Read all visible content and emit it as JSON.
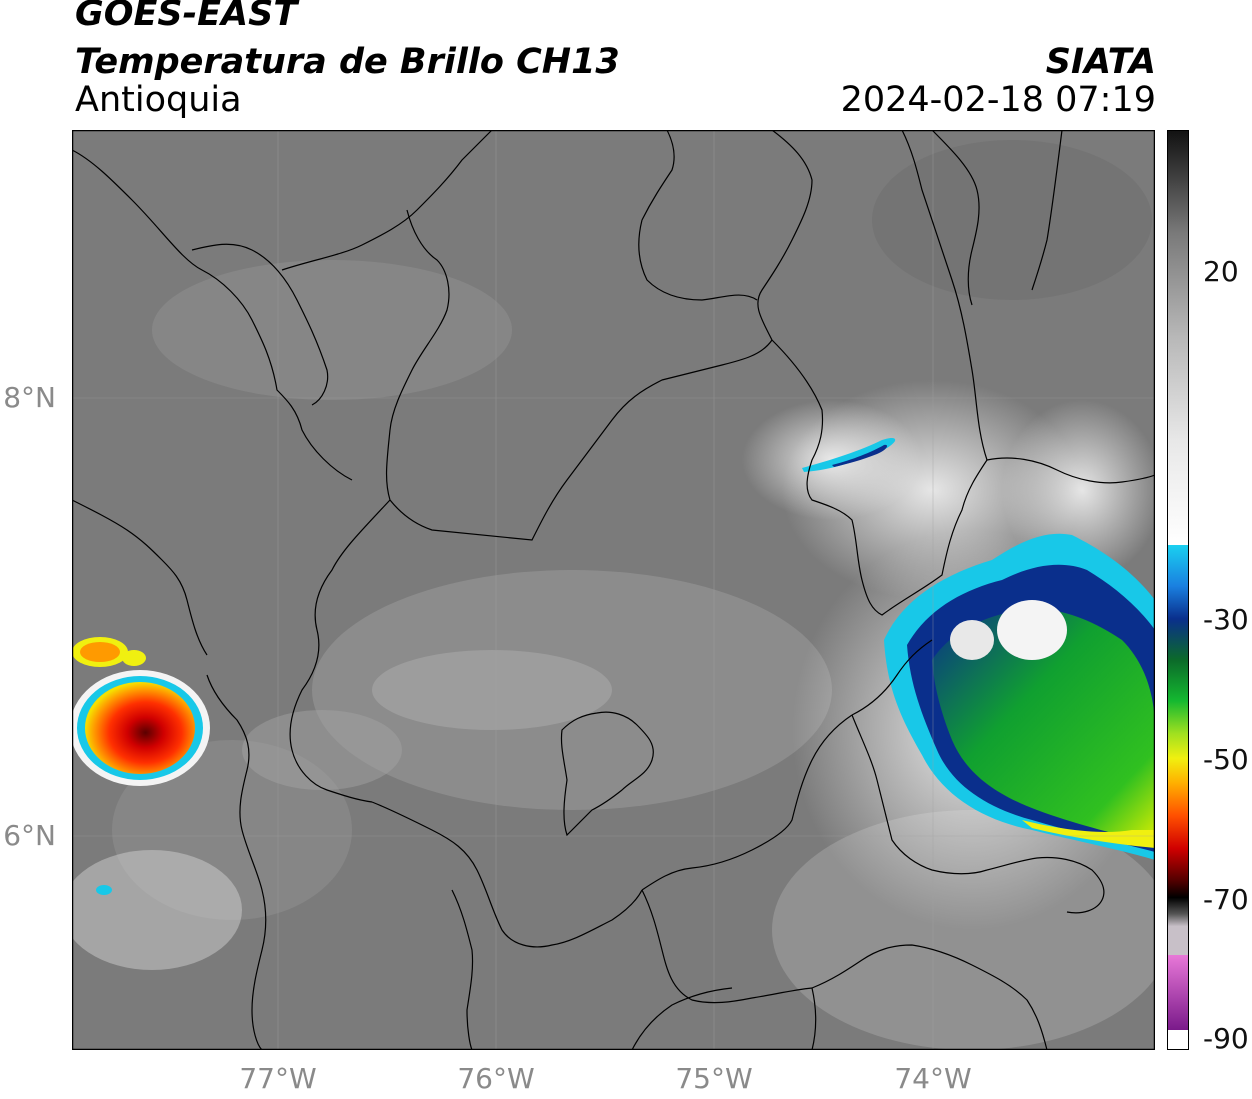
{
  "header": {
    "satellite": "GOES-EAST",
    "product": "Temperatura de Brillo CH13",
    "region": "Antioquia",
    "credit": "SIATA",
    "datetime": "2024-02-18 07:19"
  },
  "map": {
    "lat_labels": [
      "8°N",
      "6°N"
    ],
    "lon_labels": [
      "77°W",
      "76°W",
      "75°W",
      "74°W"
    ],
    "background_gray": "#7e7e7e",
    "border_color": "#000000"
  },
  "colorbar": {
    "tick_labels": [
      "20",
      "-30",
      "-50",
      "-70",
      "-90"
    ],
    "colors": {
      "warm_dark": "#1a1a1a",
      "gray_mid": "#8c8c8c",
      "near_white": "#f4f4f4",
      "cyan": "#18c8e8",
      "blue": "#0a2f8c",
      "green": "#12b030",
      "yellow": "#f0f010",
      "orange": "#ff8a00",
      "red": "#e01010",
      "dark_red": "#3a0000",
      "pink": "#e060c8",
      "purple": "#7a1a8a"
    }
  }
}
